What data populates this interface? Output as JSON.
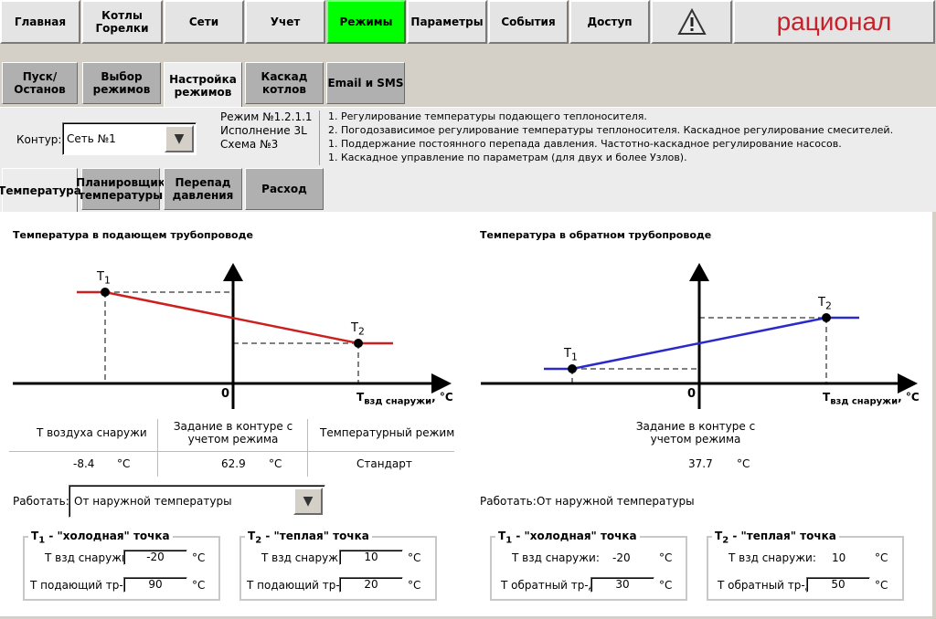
{
  "nav": {
    "items": [
      "Главная",
      "Котлы\nГорелки",
      "Сети",
      "Учет",
      "Режимы",
      "Параметры",
      "События",
      "Доступ"
    ],
    "active": "Режимы",
    "warning_icon": "warning-triangle-icon",
    "logo": "рационал"
  },
  "tabs1": {
    "items": [
      "Пуск/Останов",
      "Выбор\nрежимов",
      "Настройка\nрежимов",
      "Каскад\nкотлов",
      "Email и SMS"
    ],
    "active": "Настройка\nрежимов"
  },
  "contour": {
    "label": "Контур:",
    "value": "Сеть №1",
    "mode_lines": [
      "Режим №1.2.1.1",
      "Исполнение 3L",
      "Схема №3"
    ],
    "descriptions": [
      "1. Регулирование температуры подающего теплоносителя.",
      "2. Погодозависимое регулирование температуры теплоносителя. Каскадное регулирование смесителей.",
      "1. Поддержание постоянного перепада давления. Частотно-каскадное регулирование насосов.",
      "1. Каскадное управление по параметрам (для двух и более Узлов)."
    ]
  },
  "tabs2": {
    "items": [
      "Температура",
      "Планировщик\nтемпературы",
      "Перепад\nдавления",
      "Расход"
    ],
    "active": "Температура"
  },
  "supply": {
    "title": "Температура в подающем трубопроводе",
    "axis_x_label": "T",
    "axis_x_sub": "взд снаружи",
    "axis_x_unit": ", °C",
    "origin": "0",
    "t1_label": "T",
    "t1_sub": "1",
    "t2_label": "T",
    "t2_sub": "2",
    "line_color": "#cc1f1f",
    "table": {
      "headers": [
        "Т воздуха снаружи",
        "Задание в контуре с учетом режима",
        "Температурный режим"
      ],
      "outside_temp": "-8.4",
      "setpoint": "62.9",
      "unit": "°C",
      "mode": "Стандарт"
    },
    "work_label": "Работать:",
    "work_value": "От наружной температуры",
    "cold": {
      "title_prefix": "T",
      "title_sub": "1",
      "title_text": " - \"холодная\" точка",
      "outside_label": "Т взд снаружи:",
      "outside_value": "-20",
      "flow_label": "Т подающий тр-д:",
      "flow_value": "90",
      "unit": "°C"
    },
    "warm": {
      "title_prefix": "T",
      "title_sub": "2",
      "title_text": " - \"теплая\" точка",
      "outside_label": "Т взд снаружи:",
      "outside_value": "10",
      "flow_label": "Т подающий тр-д:",
      "flow_value": "20",
      "unit": "°C"
    }
  },
  "return": {
    "title": "Температура в обратном трубопроводе",
    "axis_x_label": "T",
    "axis_x_sub": "взд снаружи",
    "axis_x_unit": ", °C",
    "origin": "0",
    "t1_label": "T",
    "t1_sub": "1",
    "t2_label": "T",
    "t2_sub": "2",
    "line_color": "#2a2acc",
    "setpoint_header": "Задание в контуре с учетом режима",
    "setpoint": "37.7",
    "unit": "°C",
    "work_label": "Работать:",
    "work_value": "От наружной температуры",
    "cold": {
      "title_prefix": "T",
      "title_sub": "1",
      "title_text": " - \"холодная\" точка",
      "outside_label": "Т взд снаружи:",
      "outside_value": "-20",
      "flow_label": "Т обратный тр-д:",
      "flow_value": "30",
      "unit": "°C"
    },
    "warm": {
      "title_prefix": "T",
      "title_sub": "2",
      "title_text": " - \"теплая\" точка",
      "outside_label": "Т взд снаружи:",
      "outside_value": "10",
      "flow_label": "Т обратный тр-д:",
      "flow_value": "50",
      "unit": "°C"
    }
  }
}
